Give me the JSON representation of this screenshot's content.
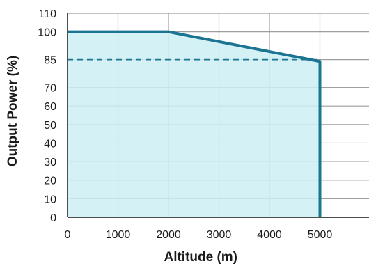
{
  "chart_data": {
    "type": "area",
    "xlabel": "Altitude (m)",
    "ylabel": "Output Power (%)",
    "xlim": [
      0,
      6000
    ],
    "ylim": [
      0,
      110
    ],
    "x_ticks": [
      0,
      1000,
      2000,
      3000,
      4000,
      5000
    ],
    "x_tick_labels": [
      "0",
      "1000",
      "2000",
      "3000",
      "4000",
      "5000"
    ],
    "y_ticks": [
      0,
      10,
      20,
      30,
      40,
      50,
      60,
      70,
      85,
      100,
      110
    ],
    "y_tick_labels": [
      "0",
      "10",
      "20",
      "30",
      "40",
      "50",
      "60",
      "70",
      "85",
      "100",
      "110"
    ],
    "grid": true,
    "series": [
      {
        "x": [
          0,
          2000,
          5000,
          5000
        ],
        "y": [
          100,
          100,
          84,
          0
        ]
      }
    ],
    "reference_line": {
      "x": [
        0,
        5000
      ],
      "y": [
        85,
        85
      ],
      "style": "dashed"
    },
    "colors": {
      "line": "#1b7592",
      "fill": "#cdeef5",
      "grid": "#9e9e9e",
      "axis": "#1a1a1a"
    }
  }
}
